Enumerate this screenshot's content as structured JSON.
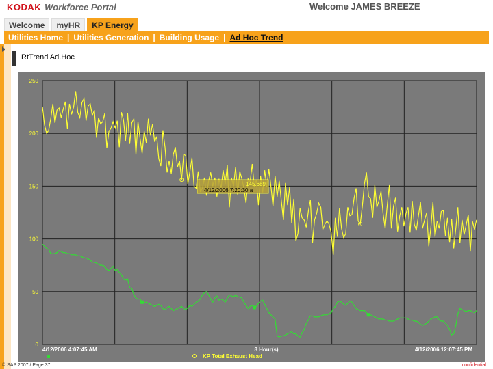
{
  "header": {
    "brand": "KODAK",
    "portal_name": "Workforce Portal",
    "welcome": "Welcome JAMES BREEZE"
  },
  "tabs": [
    {
      "label": "Welcome",
      "active": false
    },
    {
      "label": "myHR",
      "active": false
    },
    {
      "label": "KP Energy",
      "active": true
    }
  ],
  "subnav": {
    "items": [
      {
        "label": "Utilities Home",
        "active": false
      },
      {
        "label": "Utilities Generation",
        "active": false
      },
      {
        "label": "Building Usage",
        "active": false
      },
      {
        "label": "Ad Hoc Trend",
        "active": true
      }
    ],
    "separator": "|"
  },
  "panel": {
    "title": "RtTrend Ad.Hoc"
  },
  "colors": {
    "accent": "#f7a21b",
    "brand": "#d1121b",
    "chart_bg": "#7a7a7a",
    "series_yellow": "#ffff33",
    "series_green": "#33dd33",
    "grid": "#222222"
  },
  "chart_data": {
    "type": "line",
    "ylim": [
      0,
      250
    ],
    "y_ticks": [
      "0",
      "50",
      "100",
      "150",
      "200",
      "250"
    ],
    "x_labels": [
      "4/12/2006 4:07:45 AM",
      "8 Hour(s)",
      "4/12/2006 12:07:45 PM"
    ],
    "legend": [
      {
        "name": "",
        "color": "#33dd33",
        "marker": "square"
      },
      {
        "name": "KP Total Exhaust Head",
        "color": "#ffff33",
        "marker": "circle"
      }
    ],
    "tooltip": {
      "value": "145.689",
      "time": "4/12/2006 7:20:30 a"
    },
    "series": [
      {
        "name": "KP Total Exhaust Head",
        "color": "#ffff33",
        "values": [
          225,
          208,
          200,
          203,
          214,
          228,
          210,
          222,
          224,
          215,
          223,
          230,
          204,
          228,
          218,
          225,
          240,
          220,
          215,
          229,
          233,
          212,
          226,
          228,
          217,
          222,
          196,
          215,
          209,
          211,
          219,
          186,
          202,
          205,
          211,
          205,
          212,
          187,
          220,
          213,
          193,
          219,
          190,
          210,
          214,
          180,
          211,
          195,
          181,
          202,
          191,
          214,
          198,
          209,
          192,
          197,
          176,
          169,
          203,
          187,
          163,
          174,
          162,
          180,
          187,
          168,
          174,
          156,
          180,
          179,
          152,
          164,
          177,
          150,
          148,
          164,
          145,
          148,
          158,
          141,
          155,
          163,
          150,
          158,
          140,
          157,
          148,
          165,
          152,
          170,
          130,
          158,
          150,
          168,
          142,
          164,
          157,
          148,
          134,
          157,
          154,
          171,
          149,
          156,
          132,
          160,
          144,
          165,
          149,
          166,
          150,
          131,
          160,
          140,
          155,
          136,
          118,
          153,
          132,
          149,
          115,
          138,
          98,
          105,
          129,
          120,
          118,
          111,
          126,
          137,
          96,
          118,
          124,
          134,
          130,
          109,
          114,
          117,
          114,
          106,
          85,
          120,
          102,
          129,
          110,
          101,
          105,
          130,
          122,
          123,
          138,
          148,
          117,
          114,
          131,
          152,
          163,
          140,
          138,
          120,
          151,
          130,
          136,
          145,
          124,
          110,
          132,
          151,
          110,
          131,
          139,
          107,
          122,
          130,
          112,
          124,
          130,
          106,
          136,
          114,
          108,
          122,
          135,
          110,
          118,
          125,
          93,
          111,
          135,
          102,
          117,
          110,
          126,
          127,
          103,
          120,
          97,
          119,
          91,
          110,
          130,
          96,
          118,
          104,
          113,
          123,
          88,
          117,
          109,
          118
        ]
      },
      {
        "name": "",
        "color": "#33dd33",
        "values": [
          95,
          93,
          91,
          90,
          86,
          86,
          86,
          87,
          89,
          88,
          87,
          87,
          86,
          86,
          85,
          85,
          85,
          84,
          84,
          83,
          82,
          82,
          81,
          80,
          78,
          78,
          77,
          76,
          75,
          75,
          74,
          71,
          70,
          72,
          74,
          70,
          71,
          68,
          66,
          62,
          61,
          62,
          54,
          53,
          47,
          44,
          43,
          43,
          40,
          39,
          40,
          39,
          38,
          37,
          36,
          37,
          38,
          37,
          34,
          33,
          35,
          36,
          34,
          32,
          33,
          34,
          35,
          36,
          34,
          33,
          35,
          37,
          36,
          38,
          40,
          41,
          43,
          47,
          49,
          50,
          47,
          43,
          40,
          44,
          46,
          42,
          43,
          42,
          40,
          44,
          47,
          46,
          45,
          47,
          45,
          45,
          44,
          40,
          37,
          34,
          36,
          37,
          35,
          36,
          39,
          41,
          42,
          38,
          34,
          30,
          28,
          26,
          24,
          8,
          7,
          8,
          8,
          9,
          10,
          11,
          12,
          10,
          10,
          8,
          7,
          11,
          14,
          20,
          23,
          27,
          27,
          26,
          26,
          26,
          27,
          28,
          28,
          28,
          29,
          30,
          34,
          36,
          40,
          41,
          40,
          38,
          37,
          39,
          41,
          40,
          37,
          34,
          33,
          32,
          32,
          32,
          30,
          28,
          28,
          27,
          26,
          25,
          24,
          24,
          24,
          23,
          23,
          22,
          22,
          22,
          23,
          24,
          25,
          25,
          25,
          25,
          24,
          23,
          23,
          22,
          22,
          21,
          19,
          18,
          19,
          20,
          22,
          24,
          25,
          26,
          26,
          23,
          22,
          22,
          20,
          18,
          14,
          9,
          10,
          18,
          29,
          34,
          33,
          32,
          31,
          32,
          32,
          31,
          30,
          32
        ]
      }
    ]
  },
  "footer": {
    "left": "© SAP 2007 / Page 37",
    "right": "confidential"
  }
}
